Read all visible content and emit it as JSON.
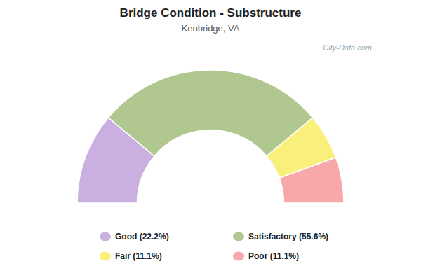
{
  "chart_data": {
    "type": "donut",
    "title": "Bridge Condition - Substructure",
    "subtitle": "Kenbridge, VA",
    "annotations": [
      "City-Data.com"
    ],
    "categories": [
      "Good (22.2%)",
      "Satisfactory (55.6%)",
      "Fair (11.1%)",
      "Poor (11.1%)"
    ],
    "values": [
      22.2,
      55.6,
      11.1,
      11.1
    ],
    "colors": [
      "#c9b0e0",
      "#b0c890",
      "#f8f07a",
      "#f8a8a8"
    ],
    "legend": "bottom"
  }
}
